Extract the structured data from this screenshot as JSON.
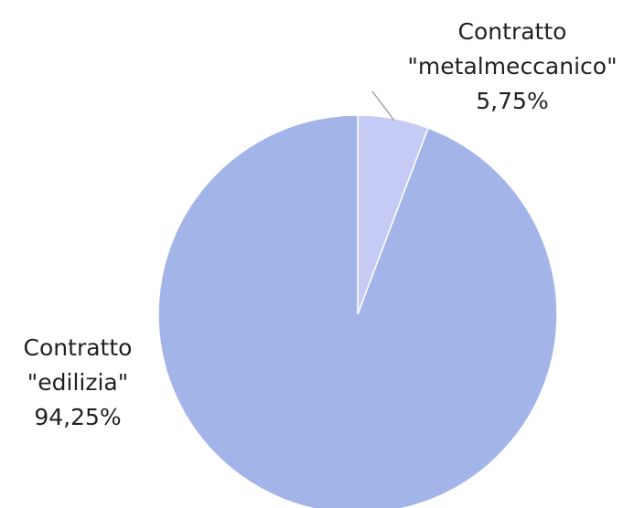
{
  "chart_data": {
    "type": "pie",
    "categories": [
      "Contratto \"metalmeccanico\"",
      "Contratto \"edilizia\""
    ],
    "values": [
      5.75,
      94.25
    ],
    "value_labels": [
      "5,75%",
      "94,25%"
    ],
    "colors": [
      "#c5cbf5",
      "#a3b4e8"
    ]
  }
}
